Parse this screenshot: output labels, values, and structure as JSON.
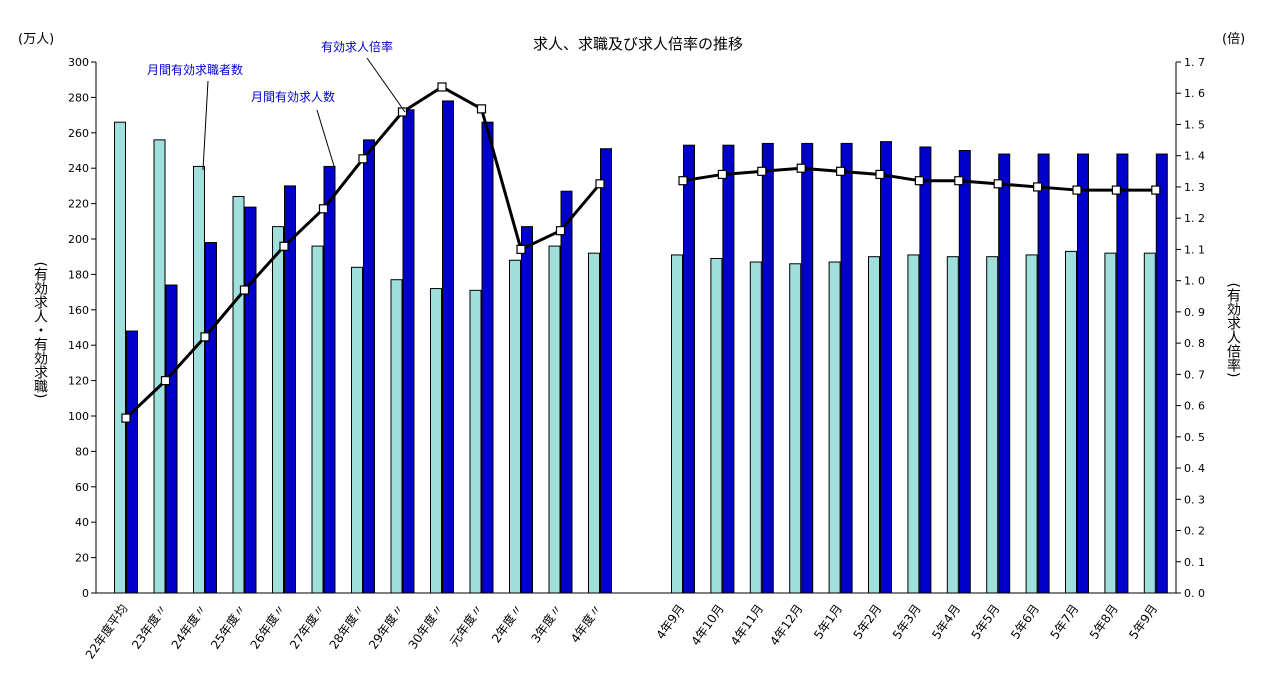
{
  "chart_data": {
    "type": "bar",
    "title": "求人、求職及び求人倍率の推移",
    "left_unit": "(万人)",
    "right_unit": "(倍)",
    "left_axis_label": "(有効求人・有効求職)",
    "right_axis_label": "(有効求人倍率)",
    "left_ylim": [
      0,
      300
    ],
    "left_ticks": [
      0,
      20,
      40,
      60,
      80,
      100,
      120,
      140,
      160,
      180,
      200,
      220,
      240,
      260,
      280,
      300
    ],
    "right_ylim": [
      0.0,
      1.7
    ],
    "right_ticks": [
      "0. 0",
      "0. 1",
      "0. 2",
      "0. 3",
      "0. 4",
      "0. 5",
      "0. 6",
      "0. 7",
      "0. 8",
      "0. 9",
      "1. 0",
      "1. 1",
      "1. 2",
      "1. 3",
      "1. 4",
      "1. 5",
      "1. 6",
      "1. 7"
    ],
    "categories": [
      "22年度平均",
      "23年度〃",
      "24年度〃",
      "25年度〃",
      "26年度〃",
      "27年度〃",
      "28年度〃",
      "29年度〃",
      "30年度〃",
      "元年度〃",
      "2年度〃",
      "3年度〃",
      "4年度〃",
      "4年9月",
      "4年10月",
      "4年11月",
      "4年12月",
      "5年1月",
      "5年2月",
      "5年3月",
      "5年4月",
      "5年5月",
      "5年6月",
      "5年7月",
      "5年8月",
      "5年9月"
    ],
    "series": [
      {
        "name": "月間有効求職者数",
        "axis": "left",
        "color": "#9fe0dd",
        "values": [
          266,
          256,
          241,
          224,
          207,
          196,
          184,
          177,
          172,
          171,
          188,
          196,
          192,
          191,
          189,
          187,
          186,
          187,
          190,
          191,
          190,
          190,
          191,
          193,
          192,
          192
        ]
      },
      {
        "name": "月間有効求人数",
        "axis": "left",
        "color": "#0000cc",
        "values": [
          148,
          174,
          198,
          218,
          230,
          241,
          256,
          273,
          278,
          266,
          207,
          227,
          251,
          253,
          253,
          254,
          254,
          254,
          255,
          252,
          250,
          248,
          248,
          248,
          248,
          248
        ]
      },
      {
        "name": "有効求人倍率",
        "axis": "right",
        "color": "#000000",
        "values": [
          0.56,
          0.68,
          0.82,
          0.97,
          1.11,
          1.23,
          1.39,
          1.54,
          1.62,
          1.55,
          1.1,
          1.16,
          1.31,
          1.32,
          1.34,
          1.35,
          1.36,
          1.35,
          1.34,
          1.32,
          1.32,
          1.31,
          1.3,
          1.29,
          1.29,
          1.29
        ]
      }
    ],
    "segments": [
      {
        "from": 0,
        "to": 12
      },
      {
        "from": 13,
        "to": 25
      }
    ],
    "annotations": [
      {
        "text": "月間有効求職者数"
      },
      {
        "text": "月間有効求人数"
      },
      {
        "text": "有効求人倍率"
      }
    ],
    "grid": false,
    "legend": "none"
  }
}
